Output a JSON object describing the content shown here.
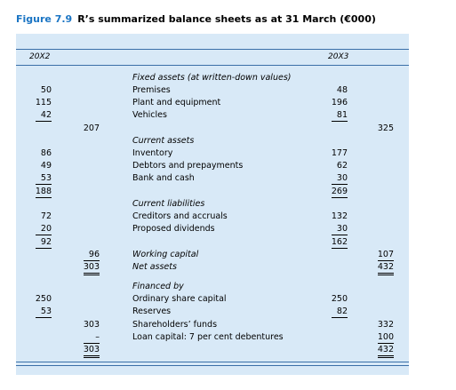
{
  "figure": {
    "label": "Figure 7.9",
    "title": "R’s summarized balance sheets as at 31 March (€000)"
  },
  "header": {
    "left_year": "20X2",
    "right_year": "20X3"
  },
  "rows": [
    {
      "label": "Fixed assets (at written-down values)"
    },
    {
      "x2_detail": 50,
      "label": "Premises",
      "x3_detail": 48
    },
    {
      "x2_detail": 115,
      "label": "Plant and equipment",
      "x3_detail": 196
    },
    {
      "x2_detail": 42,
      "label": "Vehicles",
      "x3_detail": 81
    },
    {
      "x2_total": 207,
      "x3_total": 325
    },
    {
      "label": "Current assets"
    },
    {
      "x2_detail": 86,
      "label": "Inventory",
      "x3_detail": 177
    },
    {
      "x2_detail": 49,
      "label": "Debtors and prepayments",
      "x3_detail": 62
    },
    {
      "x2_detail": 53,
      "label": "Bank and cash",
      "x3_detail": 30
    },
    {
      "x2_detail": 188,
      "x3_detail": 269
    },
    {
      "label": "Current liabilities"
    },
    {
      "x2_detail": 72,
      "label": "Creditors and accruals",
      "x3_detail": 132
    },
    {
      "x2_detail": 20,
      "label": "Proposed dividends",
      "x3_detail": 30
    },
    {
      "x2_detail": 92,
      "x3_detail": 162
    },
    {
      "x2_total": 96,
      "label": "Working capital",
      "x3_total": 107
    },
    {
      "x2_total": 303,
      "label": "Net assets",
      "x3_total": 432
    },
    {
      "label": "Financed by"
    },
    {
      "x2_detail": 250,
      "label": "Ordinary share capital",
      "x3_detail": 250
    },
    {
      "x2_detail": 53,
      "label": "Reserves",
      "x3_detail": 82
    },
    {
      "x2_total": 303,
      "label": "Shareholders’ funds",
      "x3_total": 332
    },
    {
      "x2_total": "–",
      "label": "Loan capital: 7 per cent debentures",
      "x3_total": 100
    },
    {
      "x2_total": 303,
      "x3_total": 432
    }
  ]
}
